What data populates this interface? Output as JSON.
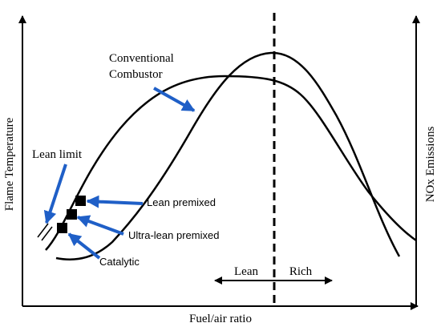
{
  "axes": {
    "x_label": "Fuel/air ratio",
    "y_left_label": "Flame Temperature",
    "y_right_label": "NOx Emissions"
  },
  "curves": [
    {
      "name": "flame-temperature-curve",
      "color": "#000000"
    },
    {
      "name": "nox-emissions-curve",
      "color": "#000000"
    }
  ],
  "stoichiometric_line": {
    "style": "dashed",
    "color": "#000000"
  },
  "regions": {
    "lean": "Lean",
    "rich": "Rich"
  },
  "annotations": {
    "conventional_line1": "Conventional",
    "conventional_line2": "Combustor",
    "lean_limit": "Lean limit",
    "lean_premixed": "Lean premixed",
    "ultra_lean_premixed": "Ultra-lean premixed",
    "catalytic": "Catalytic"
  },
  "arrow_color": "#1F5FC7",
  "marker_color": "#000000"
}
